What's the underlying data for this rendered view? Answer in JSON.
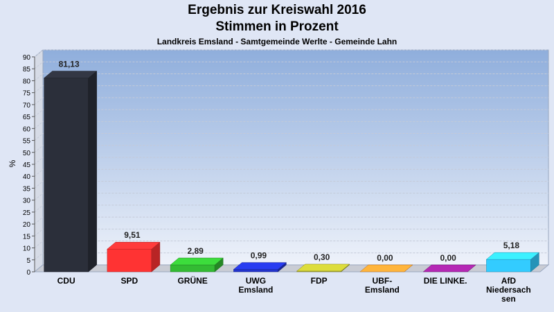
{
  "chart_data": {
    "type": "bar",
    "title": "Ergebnis zur Kreiswahl 2016",
    "subtitle_line": "Stimmen in Prozent",
    "subtitle": "Landkreis Emsland - Samtgemeinde Werlte - Gemeinde Lahn",
    "ylabel": "%",
    "xlabel": "",
    "ylim": [
      0,
      90
    ],
    "yticks": [
      0,
      5,
      10,
      15,
      20,
      25,
      30,
      35,
      40,
      45,
      50,
      55,
      60,
      65,
      70,
      75,
      80,
      85,
      90
    ],
    "grid": true,
    "categories": [
      [
        "CDU"
      ],
      [
        "SPD"
      ],
      [
        "GRÜNE"
      ],
      [
        "UWG",
        "Emsland"
      ],
      [
        "FDP"
      ],
      [
        "UBF-",
        "Emsland"
      ],
      [
        "DIE LINKE."
      ],
      [
        "AfD",
        "Niedersach",
        "sen"
      ]
    ],
    "values": [
      81.13,
      9.51,
      2.89,
      0.99,
      0.3,
      0.0,
      0.0,
      5.18
    ],
    "value_labels": [
      "81,13",
      "9,51",
      "2,89",
      "0,99",
      "0,30",
      "0,00",
      "0,00",
      "5,18"
    ],
    "colors": [
      "#2b2f3a",
      "#ff3333",
      "#33bb33",
      "#2233cc",
      "#bbbb33",
      "#ff9933",
      "#992299",
      "#33ccff"
    ]
  }
}
